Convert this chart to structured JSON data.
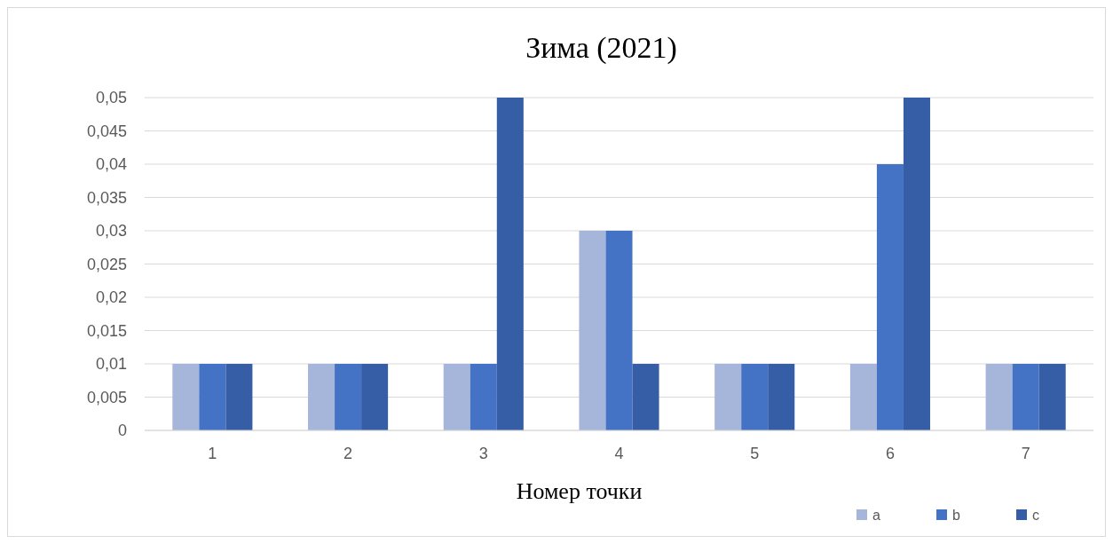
{
  "chart_data": {
    "type": "bar",
    "title": "Зима (2021)",
    "xlabel": "Номер точки",
    "categories": [
      "1",
      "2",
      "3",
      "4",
      "5",
      "6",
      "7"
    ],
    "series": [
      {
        "name": "a",
        "color": "#a6b5da",
        "values": [
          0.01,
          0.01,
          0.01,
          0.03,
          0.01,
          0.01,
          0.01
        ]
      },
      {
        "name": "b",
        "color": "#4472c4",
        "values": [
          0.01,
          0.01,
          0.01,
          0.03,
          0.01,
          0.04,
          0.01
        ]
      },
      {
        "name": "c",
        "color": "#365ea6",
        "values": [
          0.01,
          0.01,
          0.05,
          0.01,
          0.01,
          0.05,
          0.01
        ]
      }
    ],
    "ylim": [
      0,
      0.05
    ],
    "yticks": [
      {
        "value": 0,
        "label": "0"
      },
      {
        "value": 0.005,
        "label": "0,005"
      },
      {
        "value": 0.01,
        "label": "0,01"
      },
      {
        "value": 0.015,
        "label": "0,015"
      },
      {
        "value": 0.02,
        "label": "0,02"
      },
      {
        "value": 0.025,
        "label": "0,025"
      },
      {
        "value": 0.03,
        "label": "0,03"
      },
      {
        "value": 0.035,
        "label": "0,035"
      },
      {
        "value": 0.04,
        "label": "0,04"
      },
      {
        "value": 0.045,
        "label": "0,045"
      },
      {
        "value": 0.05,
        "label": "0,05"
      }
    ],
    "grid": "y",
    "legend": "bottom right"
  }
}
